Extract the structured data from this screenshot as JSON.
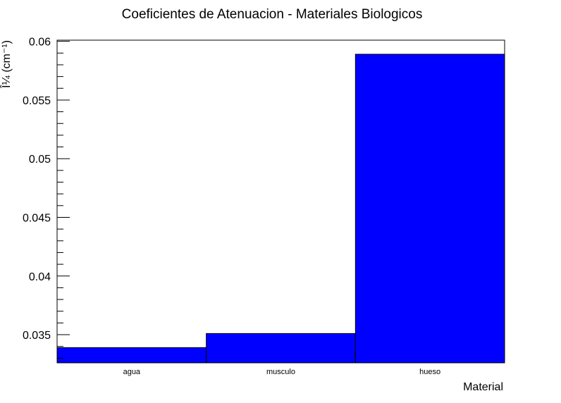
{
  "chart_data": {
    "type": "bar",
    "title": "Coeficientes de Atenuacion - Materiales Biologicos",
    "xlabel": "Material",
    "ylabel": "Î¼ (cm⁻¹)",
    "categories": [
      "agua",
      "musculo",
      "hueso"
    ],
    "values": [
      0.0339,
      0.0351,
      0.0589
    ],
    "ylim": [
      0.0326,
      0.0601
    ],
    "yticks": [
      0.035,
      0.04,
      0.045,
      0.05,
      0.055,
      0.06
    ],
    "ytick_labels": [
      "0.035",
      "0.04",
      "0.045",
      "0.05",
      "0.055",
      "0.06"
    ],
    "grid": false,
    "bar_color": "#0000ff",
    "edge_color": "#000000"
  }
}
